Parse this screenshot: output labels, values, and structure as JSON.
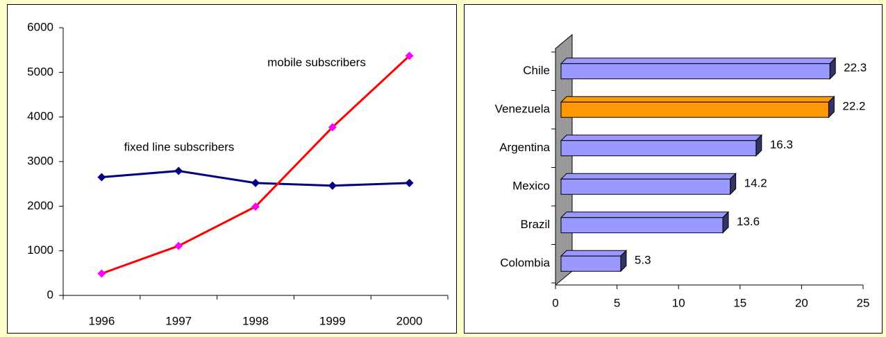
{
  "chart_data": [
    {
      "type": "line",
      "categories": [
        "1996",
        "1997",
        "1998",
        "1999",
        "2000"
      ],
      "series": [
        {
          "name": "fixed line subscribers",
          "color": "#000080",
          "marker_color": "#000080",
          "values": [
            2650,
            2790,
            2520,
            2460,
            2520
          ]
        },
        {
          "name": "mobile subscribers",
          "color": "#ff0000",
          "marker_color": "#ff00ff",
          "values": [
            490,
            1110,
            1990,
            3770,
            5370
          ]
        }
      ],
      "ylim": [
        0,
        6000
      ],
      "yticks": [
        0,
        1000,
        2000,
        3000,
        4000,
        5000,
        6000
      ],
      "grid": false
    },
    {
      "type": "bar",
      "orientation": "horizontal",
      "categories": [
        "Chile",
        "Venezuela",
        "Argentina",
        "Mexico",
        "Brazil",
        "Colombia"
      ],
      "values": [
        22.3,
        22.2,
        16.3,
        14.2,
        13.6,
        5.3
      ],
      "colors": [
        "#9999ff",
        "#ff9900",
        "#9999ff",
        "#9999ff",
        "#9999ff",
        "#9999ff"
      ],
      "xlim": [
        0,
        25
      ],
      "xticks": [
        0,
        5,
        10,
        15,
        20,
        25
      ],
      "grid": false
    }
  ]
}
